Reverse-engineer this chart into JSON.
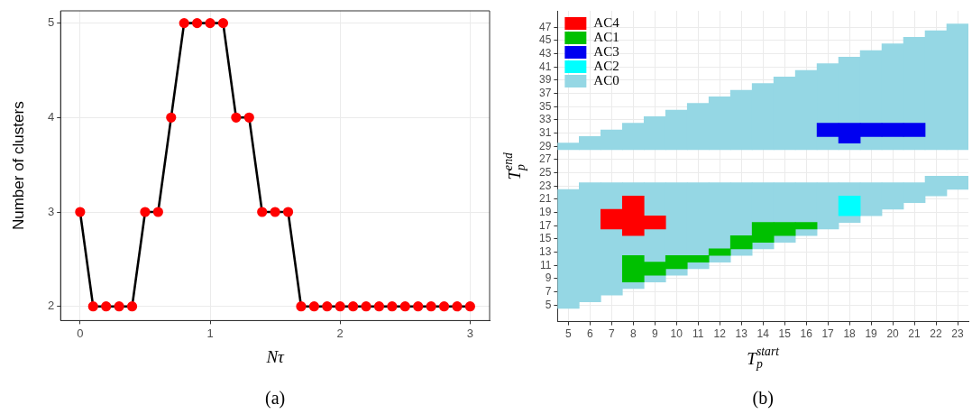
{
  "chart_data": [
    {
      "type": "line",
      "xlabel": "Nτ",
      "ylabel": "Number of clusters",
      "annotations": [
        "(a)"
      ],
      "x": [
        0,
        0.1,
        0.2,
        0.3,
        0.4,
        0.5,
        0.6,
        0.7,
        0.8,
        0.9,
        1,
        1.1,
        1.2,
        1.3,
        1.4,
        1.5,
        1.6,
        1.7,
        1.8,
        1.9,
        2,
        2.1,
        2.2,
        2.3,
        2.4,
        2.5,
        2.6,
        2.7,
        2.8,
        2.9,
        3
      ],
      "series": [
        {
          "color": "#000000",
          "colors": [
            "#ff0000",
            "#ff0000",
            "#ff0000",
            "#ff0000",
            "#ff0000",
            "#ff0000",
            "#ff0000",
            "#ff0000",
            "#ff0000",
            "#ff0000",
            "#ff0000",
            "#ff0000",
            "#ff0000",
            "#ff0000",
            "#ff0000",
            "#ff0000",
            "#ff0000",
            "#ff0000",
            "#ff0000",
            "#ff0000",
            "#ff0000",
            "#ff0000",
            "#ff0000",
            "#ff0000",
            "#ff0000",
            "#ff0000",
            "#ff0000",
            "#ff0000",
            "#ff0000",
            "#ff0000",
            "#ff0000"
          ],
          "values": [
            3,
            2,
            2,
            2,
            2,
            3,
            3,
            4,
            5,
            5,
            5,
            5,
            4,
            4,
            3,
            3,
            3,
            2,
            2,
            2,
            2,
            2,
            2,
            2,
            2,
            2,
            2,
            2,
            2,
            2,
            2
          ]
        }
      ],
      "xlim": [
        -0.15,
        3.15
      ],
      "xticks": [
        0,
        1,
        2,
        3
      ],
      "ylim": [
        1.85,
        5.13
      ],
      "yticks": [
        2,
        3,
        4,
        5
      ],
      "grid": true,
      "marker": "circle",
      "line_style": "solid"
    },
    {
      "type": "bar",
      "xlabel": "T$_{p}$$^{start}$",
      "ylabel": "T$_{p}$$^{end}$",
      "annotations": [
        "(b)"
      ],
      "legend": "top left",
      "grid": true,
      "categories": [
        "5",
        "6",
        "7",
        "8",
        "9",
        "10",
        "11",
        "12",
        "13",
        "14",
        "15",
        "16",
        "17",
        "18",
        "19",
        "20",
        "21",
        "22",
        "23"
      ],
      "ylim": [
        2.5,
        49.5
      ],
      "yticks": [
        5,
        7,
        9,
        11,
        13,
        15,
        17,
        19,
        21,
        23,
        25,
        27,
        29,
        31,
        33,
        35,
        37,
        39,
        41,
        43,
        45,
        47
      ],
      "series": [
        {
          "name": "AC4",
          "color": "#ff0000",
          "base": [
            null,
            null,
            16.5,
            15.5,
            16.5,
            null,
            null,
            null,
            null,
            null,
            null,
            null,
            null,
            null,
            null,
            null,
            null,
            null,
            null
          ],
          "values": [
            null,
            null,
            3,
            6,
            2,
            null,
            null,
            null,
            null,
            null,
            null,
            null,
            null,
            null,
            null,
            null,
            null,
            null,
            null
          ]
        },
        {
          "name": "AC1",
          "color": "#00c000",
          "base": [
            null,
            null,
            null,
            8.5,
            9.5,
            10.5,
            11.5,
            12.5,
            13.5,
            14.5,
            15.5,
            16.5,
            null,
            null,
            null,
            null,
            null,
            null,
            null
          ],
          "values": [
            null,
            null,
            null,
            4,
            2,
            2,
            1,
            1,
            2,
            3,
            2,
            1,
            null,
            null,
            null,
            null,
            null,
            null,
            null
          ]
        },
        {
          "name": "AC3",
          "color": "#0000f0",
          "base": [
            null,
            null,
            null,
            null,
            null,
            null,
            null,
            null,
            null,
            null,
            null,
            null,
            30.5,
            29.5,
            30.5,
            30.5,
            30.5,
            null,
            null
          ],
          "values": [
            null,
            null,
            null,
            null,
            null,
            null,
            null,
            null,
            null,
            null,
            null,
            null,
            2,
            3,
            2,
            2,
            2,
            null,
            null
          ]
        },
        {
          "name": "AC2",
          "color": "#00ffff",
          "base": [
            null,
            null,
            null,
            null,
            null,
            null,
            null,
            null,
            null,
            null,
            null,
            null,
            null,
            18.5,
            null,
            null,
            null,
            null,
            null
          ],
          "values": [
            null,
            null,
            null,
            null,
            null,
            null,
            null,
            null,
            null,
            null,
            null,
            null,
            null,
            3,
            null,
            null,
            null,
            null,
            null
          ]
        },
        {
          "name": "AC0",
          "color": "#95d7e4",
          "base": [
            4.5,
            5.5,
            6.5,
            7.5,
            8.5,
            9.5,
            10.5,
            11.5,
            12.5,
            13.5,
            14.5,
            15.5,
            16.5,
            17.5,
            18.5,
            19.5,
            20.5,
            21.5,
            22.5
          ],
          "values": [
            18,
            18,
            10,
            1,
            1,
            1,
            1,
            1,
            1,
            1,
            1,
            1,
            7,
            1,
            5,
            4,
            3,
            3,
            2
          ]
        },
        {
          "color": "#95d7e4",
          "base": [
            null,
            null,
            19.5,
            12.5,
            11.5,
            12.5,
            12.5,
            13.5,
            15.5,
            17.5,
            17.5,
            17.5,
            null,
            21.5,
            null,
            null,
            null,
            null,
            null
          ],
          "values": [
            null,
            null,
            4,
            3,
            5,
            11,
            11,
            10,
            8,
            6,
            6,
            6,
            null,
            2,
            null,
            null,
            null,
            null,
            null
          ]
        },
        {
          "color": "#95d7e4",
          "base": [
            null,
            null,
            null,
            21.5,
            18.5,
            null,
            null,
            null,
            null,
            null,
            null,
            null,
            null,
            null,
            null,
            null,
            null,
            null,
            null
          ],
          "values": [
            null,
            null,
            null,
            2,
            5,
            null,
            null,
            null,
            null,
            null,
            null,
            null,
            null,
            null,
            null,
            null,
            null,
            null,
            null
          ]
        },
        {
          "color": "#95d7e4",
          "base": [
            28.5,
            28.5,
            28.5,
            28.5,
            28.5,
            28.5,
            28.5,
            28.5,
            28.5,
            28.5,
            28.5,
            28.5,
            28.5,
            28.5,
            28.5,
            28.5,
            28.5,
            28.5,
            28.5
          ],
          "values": [
            1,
            2,
            3,
            4,
            5,
            6,
            7,
            8,
            9,
            10,
            11,
            12,
            2,
            1,
            2,
            2,
            2,
            18,
            19
          ]
        },
        {
          "color": "#95d7e4",
          "base": [
            null,
            null,
            null,
            null,
            null,
            null,
            null,
            null,
            null,
            null,
            null,
            null,
            32.5,
            32.5,
            32.5,
            32.5,
            32.5,
            null,
            null
          ],
          "values": [
            null,
            null,
            null,
            null,
            null,
            null,
            null,
            null,
            null,
            null,
            null,
            null,
            9,
            10,
            11,
            12,
            13,
            null,
            null
          ]
        }
      ]
    }
  ]
}
